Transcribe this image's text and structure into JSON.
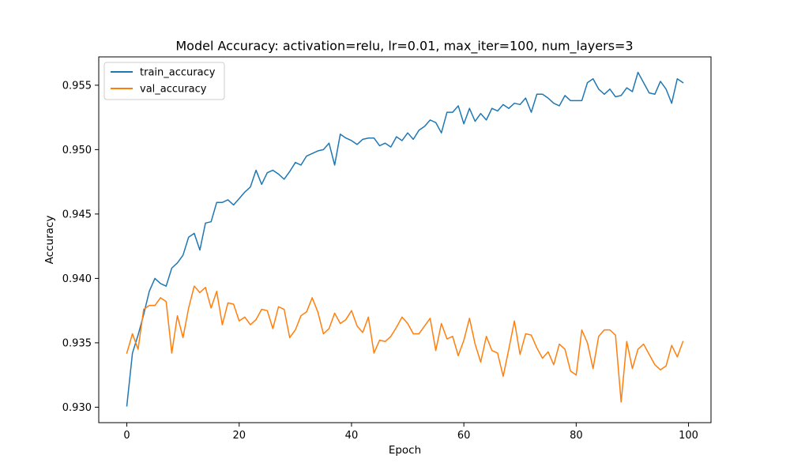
{
  "chart_data": {
    "type": "line",
    "title": "Model Accuracy: activation=relu, lr=0.01, max_iter=100, num_layers=3",
    "xlabel": "Epoch",
    "ylabel": "Accuracy",
    "xlim": [
      -5,
      104
    ],
    "ylim": [
      0.9288,
      0.9572
    ],
    "xticks": [
      0,
      20,
      40,
      60,
      80,
      100
    ],
    "xtick_labels": [
      "0",
      "20",
      "40",
      "60",
      "80",
      "100"
    ],
    "yticks": [
      0.93,
      0.935,
      0.94,
      0.945,
      0.95,
      0.955
    ],
    "ytick_labels": [
      "0.930",
      "0.935",
      "0.940",
      "0.945",
      "0.950",
      "0.955"
    ],
    "grid": false,
    "legend_position": "top-left",
    "series": [
      {
        "name": "train_accuracy",
        "color": "#1f77b4",
        "values": [
          0.9301,
          0.9342,
          0.9356,
          0.9372,
          0.939,
          0.94,
          0.9396,
          0.9394,
          0.9408,
          0.9412,
          0.9418,
          0.9432,
          0.9435,
          0.9422,
          0.9443,
          0.9444,
          0.9459,
          0.9459,
          0.9461,
          0.9457,
          0.9462,
          0.9467,
          0.9471,
          0.9484,
          0.9473,
          0.9482,
          0.9484,
          0.9481,
          0.9477,
          0.9483,
          0.949,
          0.9488,
          0.9495,
          0.9497,
          0.9499,
          0.95,
          0.9505,
          0.9488,
          0.9512,
          0.9509,
          0.9507,
          0.9504,
          0.9508,
          0.9509,
          0.9509,
          0.9503,
          0.9505,
          0.9502,
          0.951,
          0.9507,
          0.9513,
          0.9508,
          0.9515,
          0.9518,
          0.9523,
          0.9521,
          0.9513,
          0.9529,
          0.9529,
          0.9534,
          0.952,
          0.9532,
          0.9522,
          0.9528,
          0.9523,
          0.9532,
          0.953,
          0.9535,
          0.9532,
          0.9536,
          0.9535,
          0.954,
          0.9529,
          0.9543,
          0.9543,
          0.954,
          0.9536,
          0.9534,
          0.9542,
          0.9538,
          0.9538,
          0.9538,
          0.9552,
          0.9555,
          0.9547,
          0.9543,
          0.9547,
          0.9541,
          0.9542,
          0.9548,
          0.9545,
          0.956,
          0.9552,
          0.9544,
          0.9543,
          0.9553,
          0.9547,
          0.9536,
          0.9555,
          0.9552
        ]
      },
      {
        "name": "val_accuracy",
        "color": "#ff7f0e",
        "values": [
          0.9342,
          0.9357,
          0.9345,
          0.9376,
          0.9379,
          0.9379,
          0.9385,
          0.9382,
          0.9342,
          0.9371,
          0.9354,
          0.9377,
          0.9394,
          0.9389,
          0.9393,
          0.9377,
          0.939,
          0.9364,
          0.9381,
          0.938,
          0.9367,
          0.937,
          0.9364,
          0.9368,
          0.9376,
          0.9375,
          0.9361,
          0.9378,
          0.9376,
          0.9354,
          0.936,
          0.9371,
          0.9374,
          0.9385,
          0.9374,
          0.9357,
          0.9361,
          0.9373,
          0.9365,
          0.9368,
          0.9375,
          0.9363,
          0.9358,
          0.937,
          0.9342,
          0.9352,
          0.9351,
          0.9355,
          0.9362,
          0.937,
          0.9365,
          0.9357,
          0.9357,
          0.9363,
          0.9369,
          0.9344,
          0.9365,
          0.9353,
          0.9355,
          0.934,
          0.9352,
          0.9369,
          0.9349,
          0.9335,
          0.9355,
          0.9344,
          0.9342,
          0.9324,
          0.9345,
          0.9367,
          0.9341,
          0.9357,
          0.9356,
          0.9346,
          0.9338,
          0.9343,
          0.9333,
          0.9349,
          0.9345,
          0.9328,
          0.9325,
          0.936,
          0.935,
          0.933,
          0.9355,
          0.936,
          0.936,
          0.9356,
          0.9304,
          0.9351,
          0.933,
          0.9345,
          0.9349,
          0.9341,
          0.9333,
          0.9329,
          0.9332,
          0.9348,
          0.9339,
          0.9351
        ]
      }
    ]
  }
}
